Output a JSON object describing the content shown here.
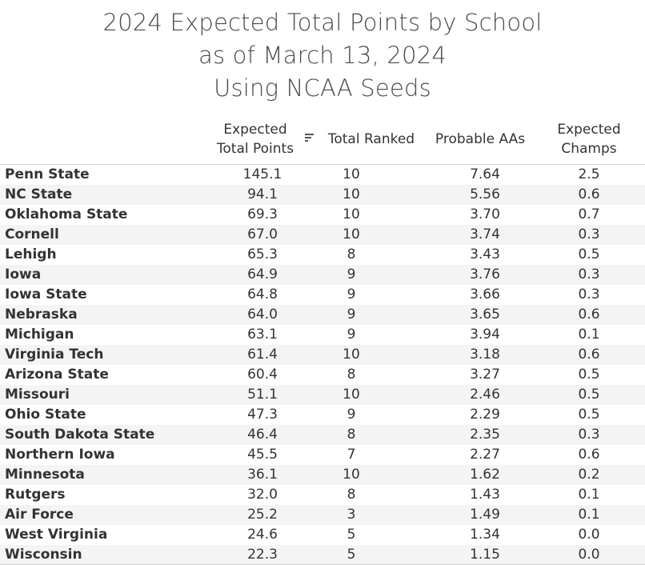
{
  "chart_data": {
    "type": "table",
    "title_lines": [
      "2024 Expected Total Points by School",
      "as of March 13, 2024",
      "Using NCAA Seeds"
    ],
    "columns": [
      {
        "key": "points",
        "lines": [
          "Expected",
          "Total Points"
        ],
        "sorted": true
      },
      {
        "key": "ranked",
        "lines": [
          "Total Ranked"
        ]
      },
      {
        "key": "aas",
        "lines": [
          "Probable AAs"
        ]
      },
      {
        "key": "champs",
        "lines": [
          "Expected",
          "Champs"
        ]
      }
    ],
    "rows": [
      {
        "school": "Penn State",
        "points": "145.1",
        "ranked": "10",
        "aas": "7.64",
        "champs": "2.5"
      },
      {
        "school": "NC State",
        "points": "94.1",
        "ranked": "10",
        "aas": "5.56",
        "champs": "0.6"
      },
      {
        "school": "Oklahoma State",
        "points": "69.3",
        "ranked": "10",
        "aas": "3.70",
        "champs": "0.7"
      },
      {
        "school": "Cornell",
        "points": "67.0",
        "ranked": "10",
        "aas": "3.74",
        "champs": "0.3"
      },
      {
        "school": "Lehigh",
        "points": "65.3",
        "ranked": "8",
        "aas": "3.43",
        "champs": "0.5"
      },
      {
        "school": "Iowa",
        "points": "64.9",
        "ranked": "9",
        "aas": "3.76",
        "champs": "0.3"
      },
      {
        "school": "Iowa State",
        "points": "64.8",
        "ranked": "9",
        "aas": "3.66",
        "champs": "0.3"
      },
      {
        "school": "Nebraska",
        "points": "64.0",
        "ranked": "9",
        "aas": "3.65",
        "champs": "0.6"
      },
      {
        "school": "Michigan",
        "points": "63.1",
        "ranked": "9",
        "aas": "3.94",
        "champs": "0.1"
      },
      {
        "school": "Virginia Tech",
        "points": "61.4",
        "ranked": "10",
        "aas": "3.18",
        "champs": "0.6"
      },
      {
        "school": "Arizona State",
        "points": "60.4",
        "ranked": "8",
        "aas": "3.27",
        "champs": "0.5"
      },
      {
        "school": "Missouri",
        "points": "51.1",
        "ranked": "10",
        "aas": "2.46",
        "champs": "0.5"
      },
      {
        "school": "Ohio State",
        "points": "47.3",
        "ranked": "9",
        "aas": "2.29",
        "champs": "0.5"
      },
      {
        "school": "South Dakota State",
        "points": "46.4",
        "ranked": "8",
        "aas": "2.35",
        "champs": "0.3"
      },
      {
        "school": "Northern Iowa",
        "points": "45.5",
        "ranked": "7",
        "aas": "2.27",
        "champs": "0.6"
      },
      {
        "school": "Minnesota",
        "points": "36.1",
        "ranked": "10",
        "aas": "1.62",
        "champs": "0.2"
      },
      {
        "school": "Rutgers",
        "points": "32.0",
        "ranked": "8",
        "aas": "1.43",
        "champs": "0.1"
      },
      {
        "school": "Air Force",
        "points": "25.2",
        "ranked": "3",
        "aas": "1.49",
        "champs": "0.1"
      },
      {
        "school": "West Virginia",
        "points": "24.6",
        "ranked": "5",
        "aas": "1.34",
        "champs": "0.0"
      },
      {
        "school": "Wisconsin",
        "points": "22.3",
        "ranked": "5",
        "aas": "1.15",
        "champs": "0.0"
      }
    ]
  },
  "colors": {
    "text": "#333333",
    "title": "#4a4a4a",
    "band": "#f4f4f4",
    "rule": "#cfcfcf"
  },
  "icons": {
    "sort": "sort-descending-icon"
  }
}
